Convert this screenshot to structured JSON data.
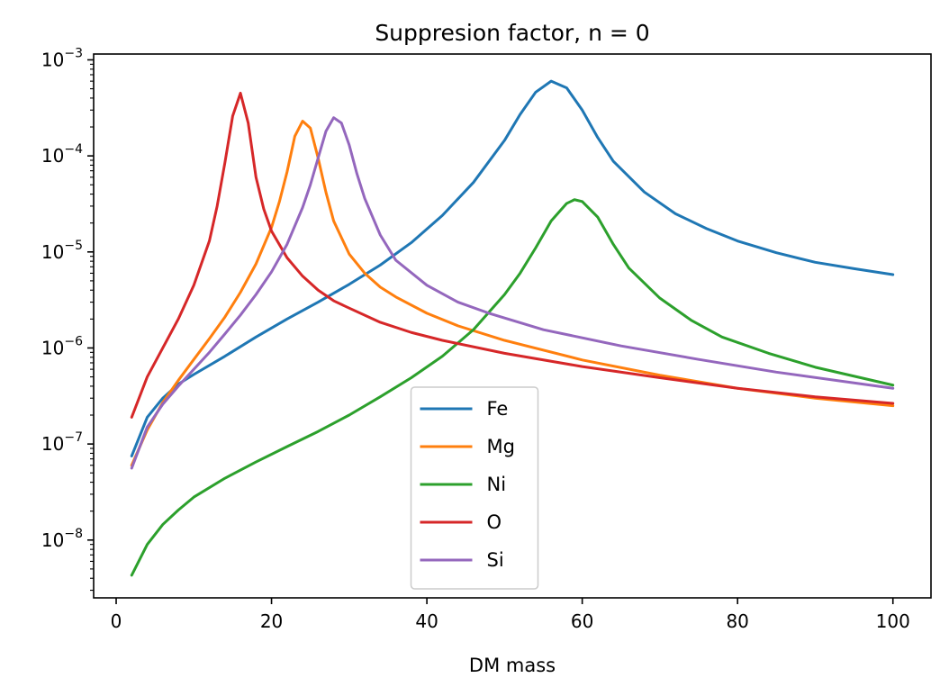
{
  "chart_data": {
    "type": "line",
    "title": "Suppresion factor, n = 0",
    "xlabel": "DM mass",
    "ylabel": "",
    "xlim": [
      -2.9,
      104.9
    ],
    "ylim": [
      2.5e-09,
      0.00115
    ],
    "yscale": "log",
    "xticks": [
      0,
      20,
      40,
      60,
      80,
      100
    ],
    "xtick_labels": [
      "0",
      "20",
      "40",
      "60",
      "80",
      "100"
    ],
    "yticks": [
      1e-08,
      1e-07,
      1e-06,
      1e-05,
      0.0001,
      0.001
    ],
    "ytick_labels": [
      {
        "base": "10",
        "exp": "−8"
      },
      {
        "base": "10",
        "exp": "−7"
      },
      {
        "base": "10",
        "exp": "−6"
      },
      {
        "base": "10",
        "exp": "−5"
      },
      {
        "base": "10",
        "exp": "−4"
      },
      {
        "base": "10",
        "exp": "−3"
      }
    ],
    "grid": false,
    "legend_position": "lower center",
    "series": [
      {
        "name": "Fe",
        "color": "#1f77b4",
        "x": [
          2,
          4,
          6,
          8,
          10,
          14,
          18,
          22,
          26,
          30,
          34,
          38,
          42,
          46,
          50,
          52,
          54,
          56,
          58,
          60,
          62,
          64,
          68,
          72,
          76,
          80,
          85,
          90,
          95,
          100
        ],
        "y": [
          7.5e-08,
          1.9e-07,
          3e-07,
          4.2e-07,
          5.3e-07,
          8.2e-07,
          1.3e-06,
          2e-06,
          3e-06,
          4.6e-06,
          7.3e-06,
          1.25e-05,
          2.4e-05,
          5.3e-05,
          0.000145,
          0.00027,
          0.00046,
          0.0006,
          0.00051,
          0.0003,
          0.000155,
          8.8e-05,
          4.2e-05,
          2.5e-05,
          1.75e-05,
          1.3e-05,
          9.8e-06,
          7.8e-06,
          6.7e-06,
          5.8e-06
        ]
      },
      {
        "name": "Mg",
        "color": "#ff7f0e",
        "x": [
          2,
          4,
          6,
          8,
          10,
          12,
          14,
          16,
          18,
          20,
          21,
          22,
          23,
          24,
          25,
          26,
          27,
          28,
          30,
          32,
          34,
          36,
          40,
          44,
          50,
          60,
          70,
          80,
          90,
          100
        ],
        "y": [
          6e-08,
          1.4e-07,
          2.7e-07,
          4.6e-07,
          7.6e-07,
          1.25e-06,
          2.1e-06,
          3.8e-06,
          7.5e-06,
          1.8e-05,
          3.3e-05,
          6.8e-05,
          0.00016,
          0.00023,
          0.000195,
          9.5e-05,
          4.2e-05,
          2.1e-05,
          9.5e-06,
          6e-06,
          4.3e-06,
          3.4e-06,
          2.3e-06,
          1.7e-06,
          1.2e-06,
          7.5e-07,
          5.2e-07,
          3.8e-07,
          3e-07,
          2.5e-07
        ]
      },
      {
        "name": "Ni",
        "color": "#2ca02c",
        "x": [
          2,
          4,
          6,
          8,
          10,
          14,
          18,
          22,
          26,
          30,
          34,
          38,
          42,
          46,
          50,
          52,
          54,
          56,
          58,
          59,
          60,
          62,
          64,
          66,
          70,
          74,
          78,
          84,
          90,
          100
        ],
        "y": [
          4.3e-09,
          9e-09,
          1.45e-08,
          2.05e-08,
          2.8e-08,
          4.4e-08,
          6.5e-08,
          9.4e-08,
          1.35e-07,
          2e-07,
          3.1e-07,
          4.9e-07,
          8.2e-07,
          1.55e-06,
          3.6e-06,
          6e-06,
          1.1e-05,
          2.1e-05,
          3.2e-05,
          3.5e-05,
          3.35e-05,
          2.3e-05,
          1.2e-05,
          6.8e-06,
          3.3e-06,
          1.95e-06,
          1.3e-06,
          8.8e-07,
          6.3e-07,
          4.1e-07
        ]
      },
      {
        "name": "O",
        "color": "#d62728",
        "x": [
          2,
          4,
          6,
          8,
          10,
          12,
          13,
          14,
          15,
          16,
          17,
          18,
          19,
          20,
          22,
          24,
          26,
          28,
          30,
          34,
          38,
          42,
          50,
          60,
          70,
          80,
          90,
          100
        ],
        "y": [
          1.9e-07,
          5e-07,
          1e-06,
          2e-06,
          4.5e-06,
          1.3e-05,
          3e-05,
          8.5e-05,
          0.00026,
          0.00045,
          0.00022,
          6e-05,
          2.8e-05,
          1.65e-05,
          8.7e-06,
          5.6e-06,
          4e-06,
          3.1e-06,
          2.6e-06,
          1.85e-06,
          1.45e-06,
          1.2e-06,
          8.8e-07,
          6.4e-07,
          4.9e-07,
          3.8e-07,
          3.1e-07,
          2.65e-07
        ]
      },
      {
        "name": "Si",
        "color": "#9467bd",
        "x": [
          2,
          4,
          6,
          8,
          10,
          12,
          14,
          16,
          18,
          20,
          22,
          24,
          25,
          26,
          27,
          28,
          29,
          30,
          31,
          32,
          34,
          36,
          40,
          44,
          48,
          55,
          65,
          75,
          85,
          100
        ],
        "y": [
          5.6e-08,
          1.5e-07,
          2.6e-07,
          4e-07,
          6e-07,
          9e-07,
          1.4e-06,
          2.2e-06,
          3.6e-06,
          6.2e-06,
          1.2e-05,
          2.9e-05,
          5e-05,
          9.5e-05,
          0.00018,
          0.00025,
          0.00022,
          0.00013,
          6.5e-05,
          3.6e-05,
          1.5e-05,
          8.2e-06,
          4.5e-06,
          3e-06,
          2.3e-06,
          1.55e-06,
          1.05e-06,
          7.6e-07,
          5.6e-07,
          3.8e-07
        ]
      }
    ]
  }
}
